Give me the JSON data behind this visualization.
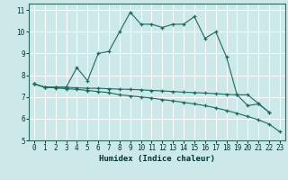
{
  "xlabel": "Humidex (Indice chaleur)",
  "bg_color": "#cce8e8",
  "grid_color": "#ffffff",
  "line_color": "#1a6b5e",
  "xlim": [
    -0.5,
    23.5
  ],
  "ylim": [
    5,
    11.3
  ],
  "yticks": [
    5,
    6,
    7,
    8,
    9,
    10,
    11
  ],
  "xticks": [
    0,
    1,
    2,
    3,
    4,
    5,
    6,
    7,
    8,
    9,
    10,
    11,
    12,
    13,
    14,
    15,
    16,
    17,
    18,
    19,
    20,
    21,
    22,
    23
  ],
  "line1_x": [
    0,
    1,
    2,
    3,
    4,
    5,
    6,
    7,
    8,
    9,
    10,
    11,
    12,
    13,
    14,
    15,
    16,
    17,
    18,
    19,
    20,
    21,
    22
  ],
  "line1_y": [
    7.6,
    7.45,
    7.45,
    7.45,
    8.35,
    7.75,
    9.0,
    9.1,
    10.0,
    10.9,
    10.35,
    10.35,
    10.2,
    10.35,
    10.35,
    10.7,
    9.7,
    10.0,
    8.85,
    7.1,
    7.1,
    6.7,
    6.3
  ],
  "line2_x": [
    0,
    1,
    2,
    3,
    4,
    5,
    6,
    7,
    8,
    9,
    10,
    11,
    12,
    13,
    14,
    15,
    16,
    17,
    18,
    19,
    20,
    21,
    22
  ],
  "line2_y": [
    7.6,
    7.45,
    7.45,
    7.45,
    7.42,
    7.4,
    7.4,
    7.38,
    7.36,
    7.35,
    7.33,
    7.3,
    7.28,
    7.25,
    7.22,
    7.2,
    7.18,
    7.15,
    7.12,
    7.1,
    6.6,
    6.68,
    6.3
  ],
  "line3_x": [
    0,
    1,
    2,
    3,
    4,
    5,
    6,
    7,
    8,
    9,
    10,
    11,
    12,
    13,
    14,
    15,
    16,
    17,
    18,
    19,
    20,
    21,
    22,
    23
  ],
  "line3_y": [
    7.6,
    7.45,
    7.42,
    7.38,
    7.35,
    7.3,
    7.25,
    7.2,
    7.1,
    7.05,
    7.0,
    6.95,
    6.88,
    6.82,
    6.75,
    6.68,
    6.6,
    6.5,
    6.38,
    6.25,
    6.1,
    5.95,
    5.75,
    5.4
  ]
}
